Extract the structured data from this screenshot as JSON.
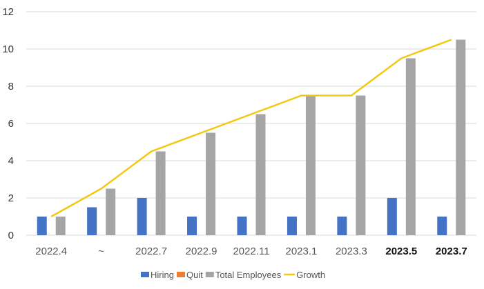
{
  "chart_data": {
    "type": "bar",
    "categories": [
      "2022.4",
      "~",
      "2022.7",
      "2022.9",
      "2022.11",
      "2023.1",
      "2023.3",
      "2023.5",
      "2023.7"
    ],
    "bold_categories": [
      "2023.5",
      "2023.7"
    ],
    "series": [
      {
        "name": "Hiring",
        "type": "bar",
        "color": "#4472C4",
        "values": [
          1,
          1.5,
          2,
          1,
          1,
          1,
          1,
          2,
          1
        ]
      },
      {
        "name": "Quit",
        "type": "bar",
        "color": "#ED7D31",
        "values": [
          0,
          0,
          0,
          0,
          0,
          0,
          0,
          0,
          0
        ]
      },
      {
        "name": "Total Employees",
        "type": "bar",
        "color": "#A5A5A5",
        "values": [
          1,
          2.5,
          4.5,
          5.5,
          6.5,
          7.5,
          7.5,
          9.5,
          10.5
        ]
      },
      {
        "name": "Growth",
        "type": "line",
        "color": "#F2C811",
        "values": [
          1,
          2.5,
          4.5,
          5.5,
          6.5,
          7.5,
          7.5,
          9.5,
          10.5
        ]
      }
    ],
    "ylim": [
      0,
      12
    ],
    "yticks": [
      0,
      2,
      4,
      6,
      8,
      10,
      12
    ],
    "grid": true,
    "legend_position": "bottom"
  }
}
